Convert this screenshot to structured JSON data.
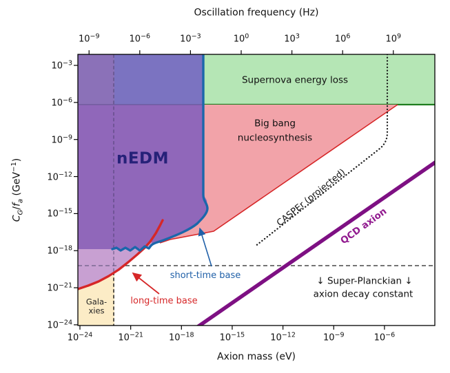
{
  "figure": {
    "top_axis": {
      "label": "Oscillation frequency (Hz)",
      "tick_base": "10",
      "tick_exponents": [
        -9,
        -6,
        -3,
        0,
        3,
        6,
        9
      ]
    },
    "bottom_axis": {
      "label": "Axion mass (eV)",
      "tick_base": "10",
      "tick_exponents": [
        -24,
        -21,
        -18,
        -15,
        -12,
        -9,
        -6
      ]
    },
    "left_axis": {
      "label_parts": {
        "sym1": "C",
        "sub1": "G",
        "sep": "/",
        "sym2": "f",
        "sub2": "a",
        "unit": " (GeV",
        "exp": "−1",
        "close": ")"
      },
      "tick_base": "10",
      "tick_exponents": [
        -3,
        -6,
        -9,
        -12,
        -15,
        -18,
        -21,
        -24
      ]
    },
    "labels": {
      "supernova": "Supernova energy loss",
      "bbn_line1": "Big bang",
      "bbn_line2": "nucleosynthesis",
      "nedm": "nEDM",
      "casper": "CASPEr (projected)",
      "qcd": "QCD axion",
      "short_time": "short-time base",
      "long_time": "long-time base",
      "galaxies_line1": "Gala-",
      "galaxies_line2": "xies",
      "super_line1": "↓ Super-Planckian ↓",
      "super_line2": "axion decay constant"
    },
    "colors": {
      "supernova_fill": "#b5e6b5",
      "supernova_edge": "#1e7d1e",
      "bbn_fill": "#f2a3a9",
      "bbn_edge": "#d62728",
      "nedm_body": "#9067ba",
      "nedm_top_left": "#8b71b8",
      "nedm_top_slate": "#7b73c1",
      "nedm_lower_strip": "#c8a0d2",
      "short_time_curve": "#1b67ab",
      "long_time_curve": "#d62728",
      "qcd_line": "#7e1083",
      "qcd_text": "#911a8f",
      "galaxies_fill": "#fcecc6",
      "nedm_text": "#262178",
      "dashed_lines": "#222222"
    }
  },
  "chart_data": {
    "type": "area",
    "subtype": "exclusion-region-plot",
    "title": "",
    "xlabel": "Axion mass (eV)",
    "xlabel_top": "Oscillation frequency (Hz)",
    "ylabel": "C_G/f_a (GeV^-1)",
    "x_scale": "log",
    "y_scale": "log",
    "xlim_eV": [
      8e-25,
      0.001
    ],
    "xlim_top_Hz": [
      3e-10,
      3000000000.0
    ],
    "ylim_GeV-1": [
      1e-24,
      0.008
    ],
    "x_ticks_eV": [
      1e-24,
      1e-21,
      1e-18,
      1e-15,
      1e-12,
      1e-09,
      1e-06
    ],
    "x_ticks_top_Hz": [
      1e-09,
      1e-06,
      0.001,
      1,
      1000.0,
      1000000.0,
      1000000000.0
    ],
    "y_ticks_GeV-1": [
      0.001,
      1e-06,
      1e-09,
      1e-12,
      1e-15,
      1e-18,
      1e-21,
      1e-24
    ],
    "grid": false,
    "legend": "none (labels drawn inside plot)",
    "series": [
      {
        "name": "Supernova energy loss",
        "style": "region",
        "bounds": "C_G/f_a > 1e-6 GeV^-1 for m_a > 2e-17 eV"
      },
      {
        "name": "Big bang nucleosynthesis",
        "style": "region",
        "boundary_points_eV_GeV-1": [
          [
            5e-20,
            5e-18
          ],
          [
            8e-17,
            4e-17
          ],
          [
            6e-06,
            7e-07
          ],
          [
            6e-06,
            1e-06
          ],
          [
            2e-17,
            1e-06
          ]
        ]
      },
      {
        "name": "nEDM short-time base",
        "style": "exclusion-boundary",
        "points_eV_GeV-1": [
          [
            1e-22,
            1.5e-18
          ],
          [
            1e-20,
            1.4e-18
          ],
          [
            8e-20,
            8e-18
          ],
          [
            1.3e-18,
            4e-17
          ],
          [
            1e-17,
            2e-16
          ],
          [
            2.5e-17,
            1e-15
          ],
          [
            2e-17,
            4e-14
          ],
          [
            2e-17,
            0.006
          ]
        ]
      },
      {
        "name": "nEDM long-time base",
        "style": "exclusion-boundary",
        "points_eV_GeV-1": [
          [
            8e-25,
            9e-22
          ],
          [
            1.3e-23,
            4e-21
          ],
          [
            2e-22,
            3e-20
          ],
          [
            2.5e-21,
            5e-19
          ],
          [
            1.4e-20,
            6e-18
          ],
          [
            8e-20,
            3e-16
          ]
        ]
      },
      {
        "name": "CASPEr (projected)",
        "style": "dotted-line",
        "points_eV_GeV-1": [
          [
            2.2e-14,
            2.5e-18
          ],
          [
            8e-07,
            2e-10
          ],
          [
            1.6e-06,
            1e-10
          ],
          [
            1.6e-06,
            0.006
          ]
        ]
      },
      {
        "name": "QCD axion",
        "style": "line",
        "points_eV_GeV-1": [
          [
            1.3e-17,
            1e-24
          ],
          [
            0.001,
            1.3e-11
          ]
        ]
      },
      {
        "name": "Galaxies",
        "style": "region",
        "bounds": "m_a < 1e-22 eV, below long-time base curve"
      },
      {
        "name": "Super-Planckian axion decay constant",
        "style": "dashed-hline",
        "value_GeV-1": 4e-19
      },
      {
        "name": "Galaxies mass bound",
        "style": "dashed-vline",
        "value_eV": 1e-22
      }
    ],
    "annotations": [
      "nEDM",
      "short-time base",
      "long-time base",
      "Supernova energy loss",
      "Big bang nucleosynthesis",
      "CASPEr (projected)",
      "QCD axion",
      "Galaxies",
      "↓ Super-Planckian ↓ axion decay constant"
    ]
  }
}
